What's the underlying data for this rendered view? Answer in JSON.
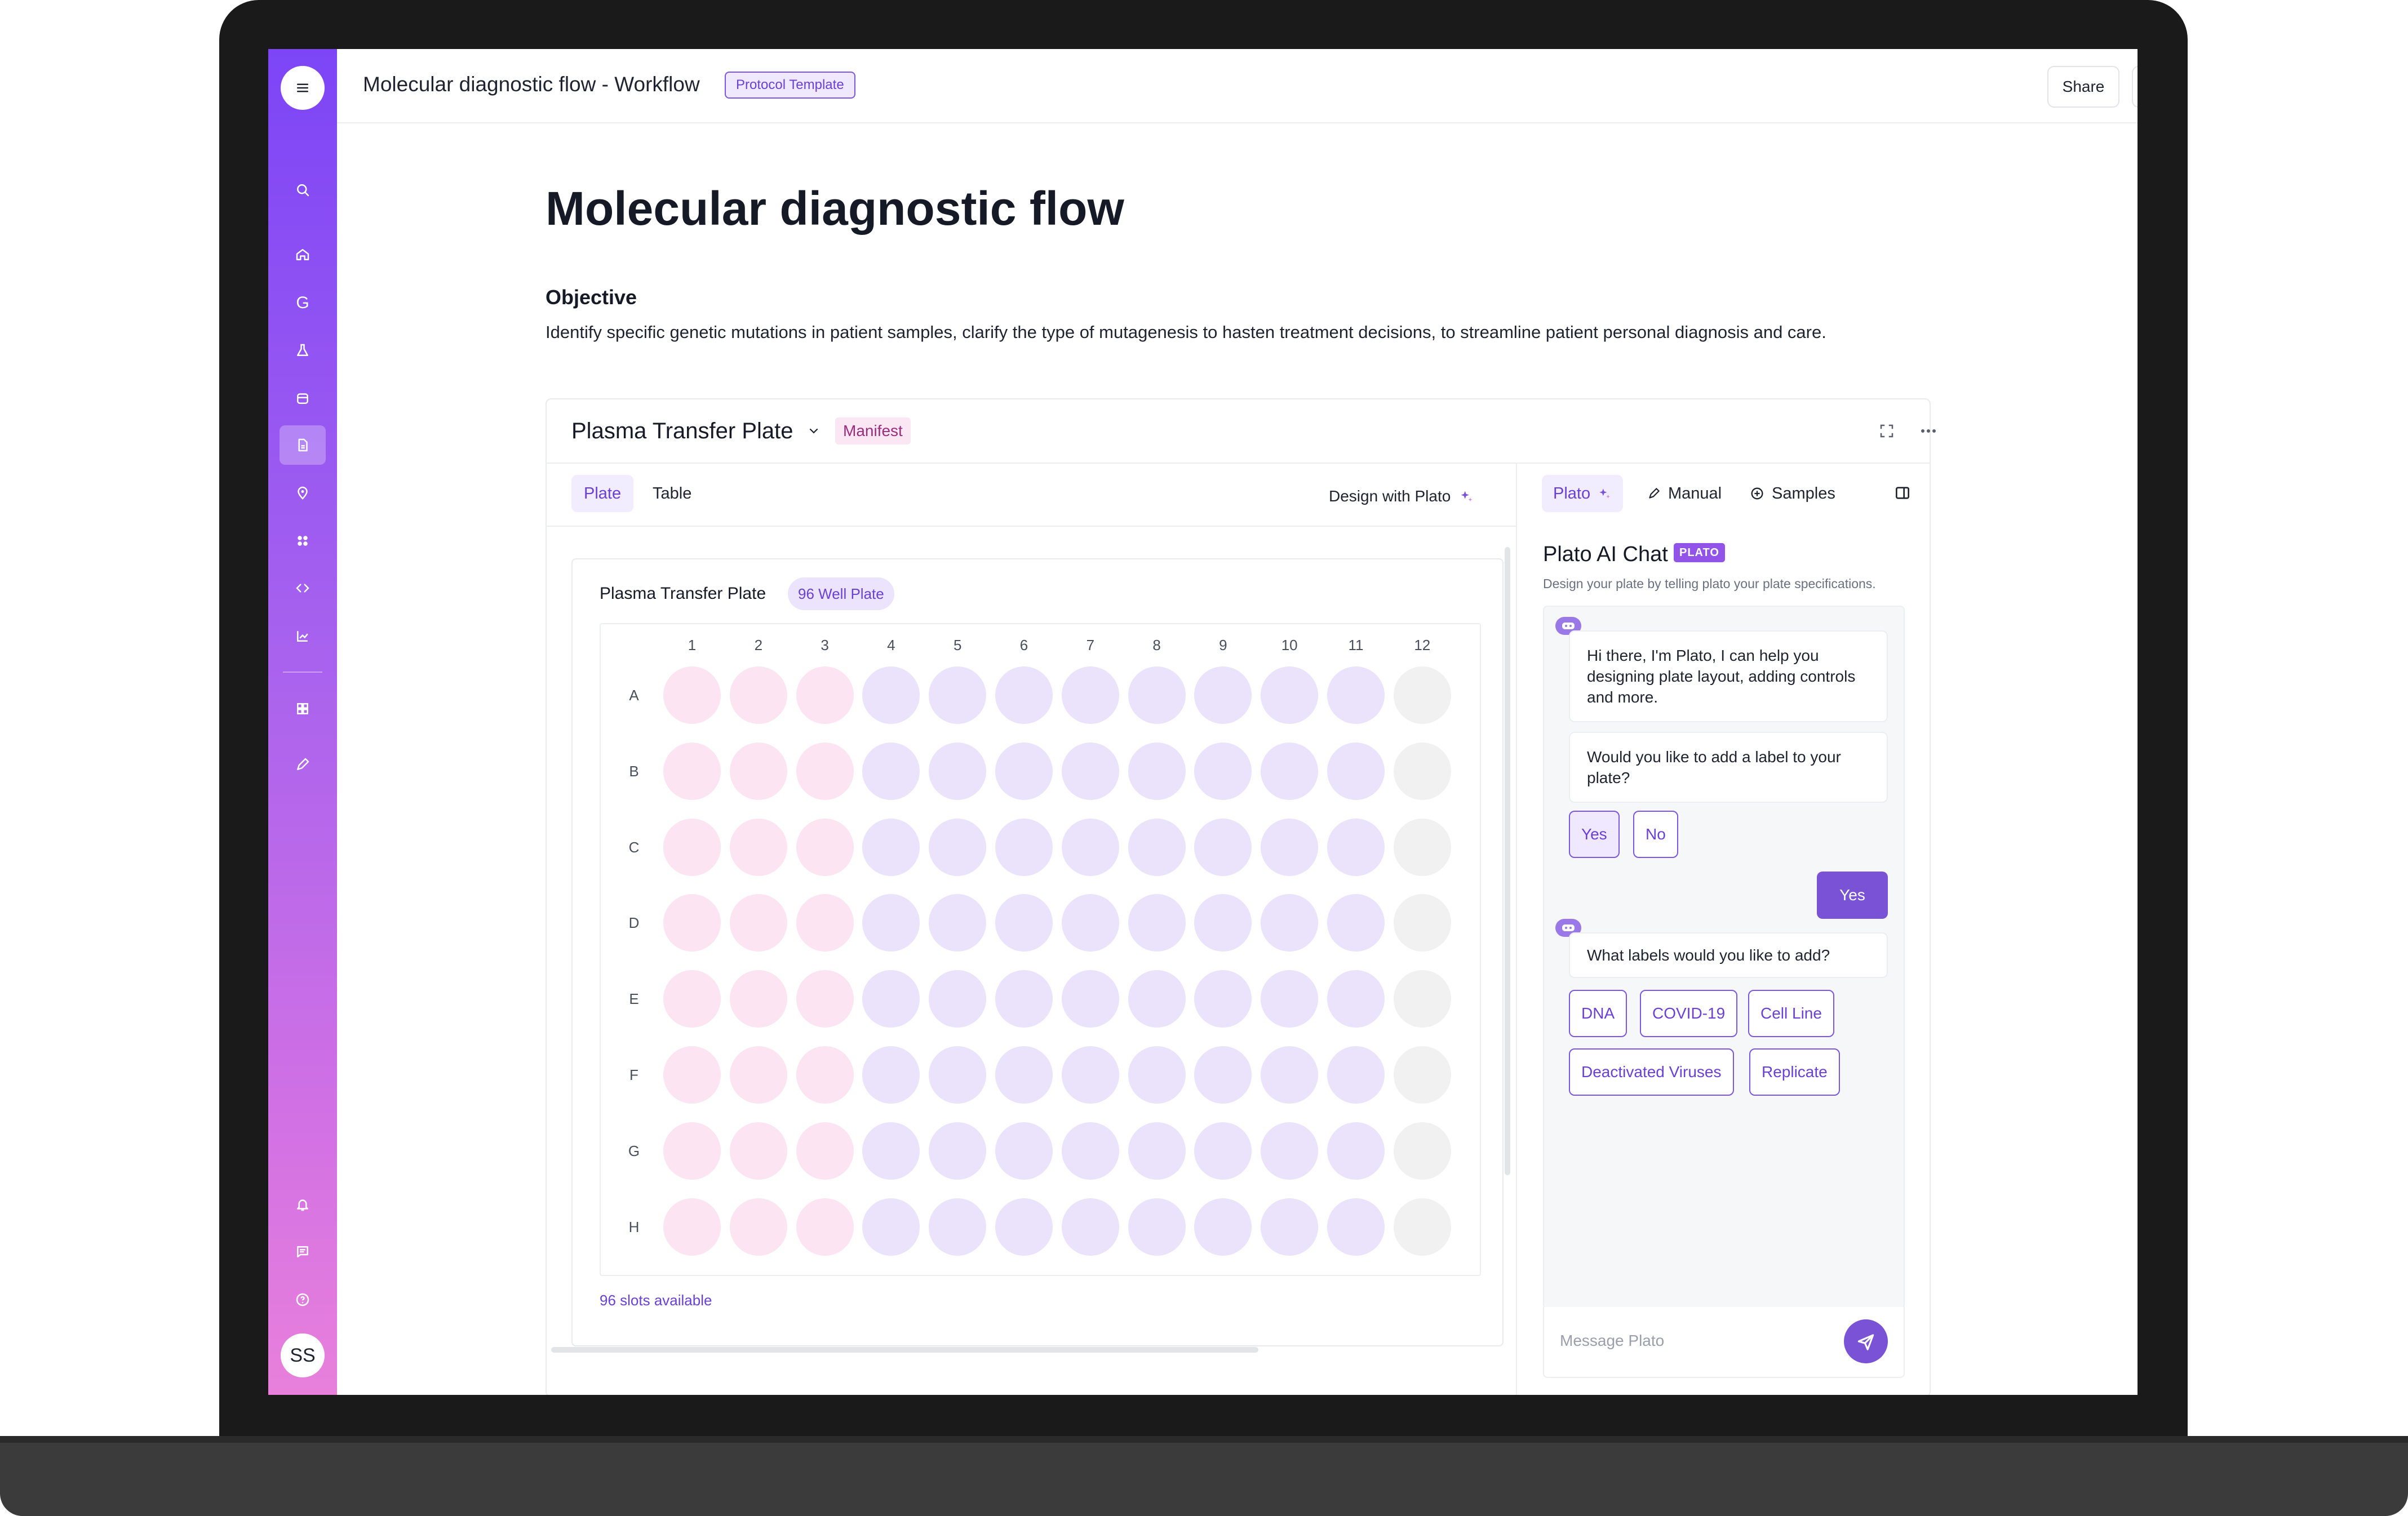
{
  "window": {
    "title": "Molecular diagnostic flow - Workflow",
    "badge": "Protocol Template"
  },
  "header": {
    "share_label": "Share"
  },
  "sidebar": {
    "search": "search-icon",
    "letter_item": "G",
    "avatar_initials": "SS"
  },
  "page": {
    "title": "Molecular diagnostic flow",
    "objective_label": "Objective",
    "objective_text": "Identify specific genetic mutations in patient samples, clarify the type of mutagenesis to hasten treatment decisions,  to streamline patient personal diagnosis and care."
  },
  "card": {
    "title": "Plasma Transfer Plate",
    "badge": "Manifest",
    "tabs": [
      "Plate",
      "Table"
    ],
    "design_with_plato": "Design with Plato"
  },
  "plate": {
    "title": "Plasma Transfer Plate",
    "badge": "96 Well Plate",
    "columns": [
      "1",
      "2",
      "3",
      "4",
      "5",
      "6",
      "7",
      "8",
      "9",
      "10",
      "11",
      "12"
    ],
    "rows": [
      "A",
      "B",
      "C",
      "D",
      "E",
      "F",
      "G",
      "H"
    ],
    "slots_text": "96 slots available",
    "well_colors": {
      "pink": "#fce4f2",
      "lilac": "#ebe2fb",
      "gray": "#f1f1f2"
    }
  },
  "assistant": {
    "tabs": [
      "Plato",
      "Manual",
      "Samples"
    ],
    "title": "Plato AI Chat",
    "badge": "PLATO",
    "subtitle": "Design your plate by telling plato your plate specifications.",
    "messages": {
      "greeting": "Hi there, I'm Plato, I can help you designing plate layout, adding controls and more.",
      "question": "Would you like to add a label to your plate?",
      "options": [
        "Yes",
        "No"
      ],
      "user_reply": "Yes",
      "labels_question": "What labels would you like to add?",
      "label_options": [
        "DNA",
        "COVID-19",
        "Cell Line",
        "Deactivated Viruses",
        "Replicate"
      ]
    },
    "composer_placeholder": "Message Plato"
  },
  "colors": {
    "accent": "#7a52d6",
    "rail_top": "#7c45f6",
    "rail_bottom": "#e880db"
  }
}
